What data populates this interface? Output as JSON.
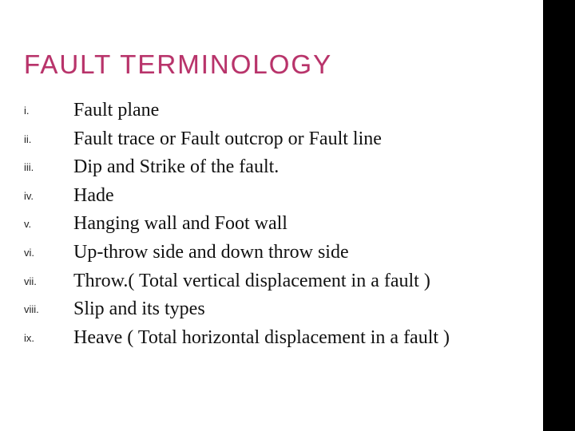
{
  "title": "FAULT TERMINOLOGY",
  "title_color": "#b8336a",
  "background": "#ffffff",
  "sidebar_color": "#000000",
  "items": [
    {
      "num": "i.",
      "text": "Fault plane"
    },
    {
      "num": "ii.",
      "text": "Fault trace or Fault outcrop or Fault line"
    },
    {
      "num": "iii.",
      "text": "Dip and Strike of the fault."
    },
    {
      "num": "iv.",
      "text": "Hade"
    },
    {
      "num": "v.",
      "text": "Hanging wall and Foot wall"
    },
    {
      "num": "vi.",
      "text": "Up-throw side and down throw side"
    },
    {
      "num": "vii.",
      "text": "Throw.( Total vertical displacement in a fault )"
    },
    {
      "num": "viii.",
      "text": "Slip and its types"
    },
    {
      "num": "ix.",
      "text": "Heave ( Total horizontal displacement in a fault )"
    }
  ],
  "title_fontsize": 33,
  "body_fontsize": 24,
  "num_fontsize": 13
}
